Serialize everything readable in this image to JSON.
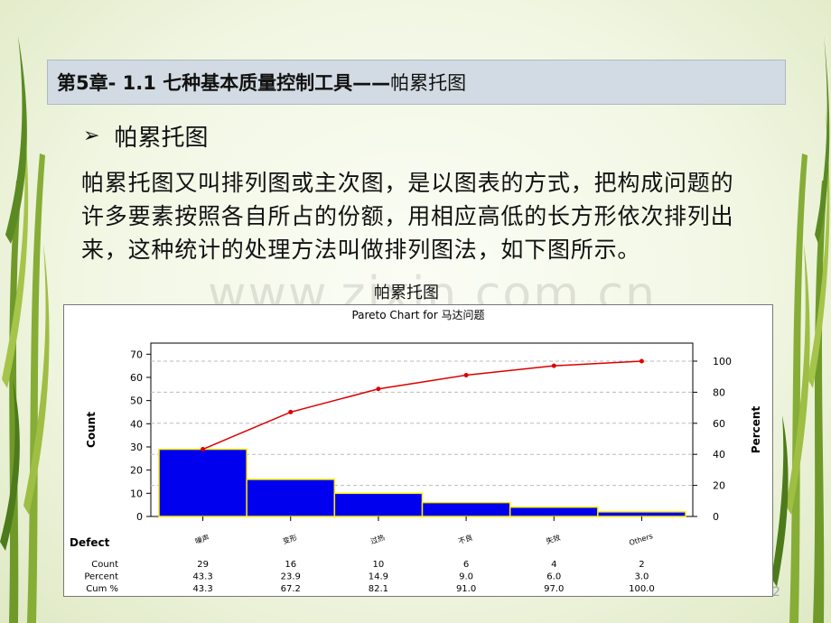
{
  "slide": {
    "title_bold": "第5章- 1.1  七种基本质量控制工具——",
    "title_normal": "帕累托图",
    "bullet": "帕累托图",
    "paragraph": "帕累托图又叫排列图或主次图，是以图表的方式，把构成问题的许多要素按照各自所占的份额，用相应高低的长方形依次排列出来，这种统计的处理方法叫做排列图法，如下图所示。",
    "watermark": "www.zixin.com.cn",
    "chart_caption": "帕累托图",
    "page_number": "2"
  },
  "colors": {
    "bar_fill": "#0000ee",
    "bar_border": "#ffee00",
    "cum_line": "#dd0000"
  },
  "chart_data": {
    "type": "bar",
    "title": "Pareto Chart for 马达问题",
    "categories": [
      "噪声",
      "变形",
      "过热",
      "不良",
      "失效",
      "Others"
    ],
    "series": [
      {
        "name": "Count",
        "values": [
          29,
          16,
          10,
          6,
          4,
          2
        ]
      },
      {
        "name": "Cum %",
        "values": [
          43.3,
          67.2,
          82.1,
          91.0,
          97.0,
          100.0
        ]
      }
    ],
    "ylabel": "Count",
    "y2label": "Percent",
    "ylim": [
      0,
      70
    ],
    "y2lim": [
      0,
      100
    ],
    "yticks": [
      0,
      10,
      20,
      30,
      40,
      50,
      60,
      70
    ],
    "y2ticks": [
      0,
      20,
      40,
      60,
      80,
      100
    ],
    "table": {
      "header": "Defect",
      "rows": [
        {
          "label": "Count",
          "values": [
            "29",
            "16",
            "10",
            "6",
            "4",
            "2"
          ]
        },
        {
          "label": "Percent",
          "values": [
            "43.3",
            "23.9",
            "14.9",
            "9.0",
            "6.0",
            "3.0"
          ]
        },
        {
          "label": "Cum %",
          "values": [
            "43.3",
            "67.2",
            "82.1",
            "91.0",
            "97.0",
            "100.0"
          ]
        }
      ]
    },
    "grid": "dashed horizontal at right-axis ticks"
  }
}
